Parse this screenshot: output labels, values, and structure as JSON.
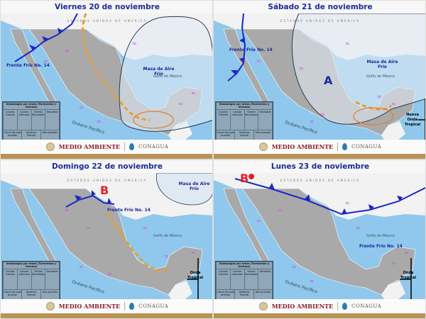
{
  "colors": {
    "sea": "#8fc8ec",
    "land": "#a9a9a9",
    "usa": "#f2f2f2",
    "title": "#1c2a9c",
    "front": "#1a27c8",
    "trough": "#e8a02c",
    "cold_air": "#dfe9f3",
    "low": "#e0202a"
  },
  "common": {
    "usa_label": "ESTADOS UNIDOS DE AMERICA",
    "gulf_label": "Golfo de México",
    "pacific_label": "Océano Pacífico",
    "guatemala_label": "Guatemala",
    "footer_left": "MEDIO AMBIENTE",
    "footer_right": "CONAGUA",
    "legend": {
      "title": "Simbología por áreas (Tormentas y Vientos)",
      "items": [
        "Lluvias Fuertes",
        "Lluvias Intensas",
        "Viento Racheado",
        "Nevadas",
        "Canal de baja presión",
        "Sistema Frontal",
        "Alta presión"
      ]
    }
  },
  "panels": [
    {
      "title": "Viernes 20 de noviembre",
      "front_label": "Frente Frío No. 14",
      "air_mass": "Masa de Aire Frío"
    },
    {
      "title": "Sábado 21 de noviembre",
      "front_label": "Frente Frío No. 14",
      "air_mass": "Masa de Aire Frío",
      "high": "A",
      "wave": "Nueva Onda Tropical"
    },
    {
      "title": "Domingo 22 de noviembre",
      "front_label": "Frente Frío No. 14",
      "air_mass": "Masa de Aire Frío",
      "low": "B",
      "wave": "Onda Tropical"
    },
    {
      "title": "Lunes 23 de noviembre",
      "front_label": "Frente Frío No. 14",
      "low": "B",
      "wave": "Onda Tropical"
    }
  ]
}
